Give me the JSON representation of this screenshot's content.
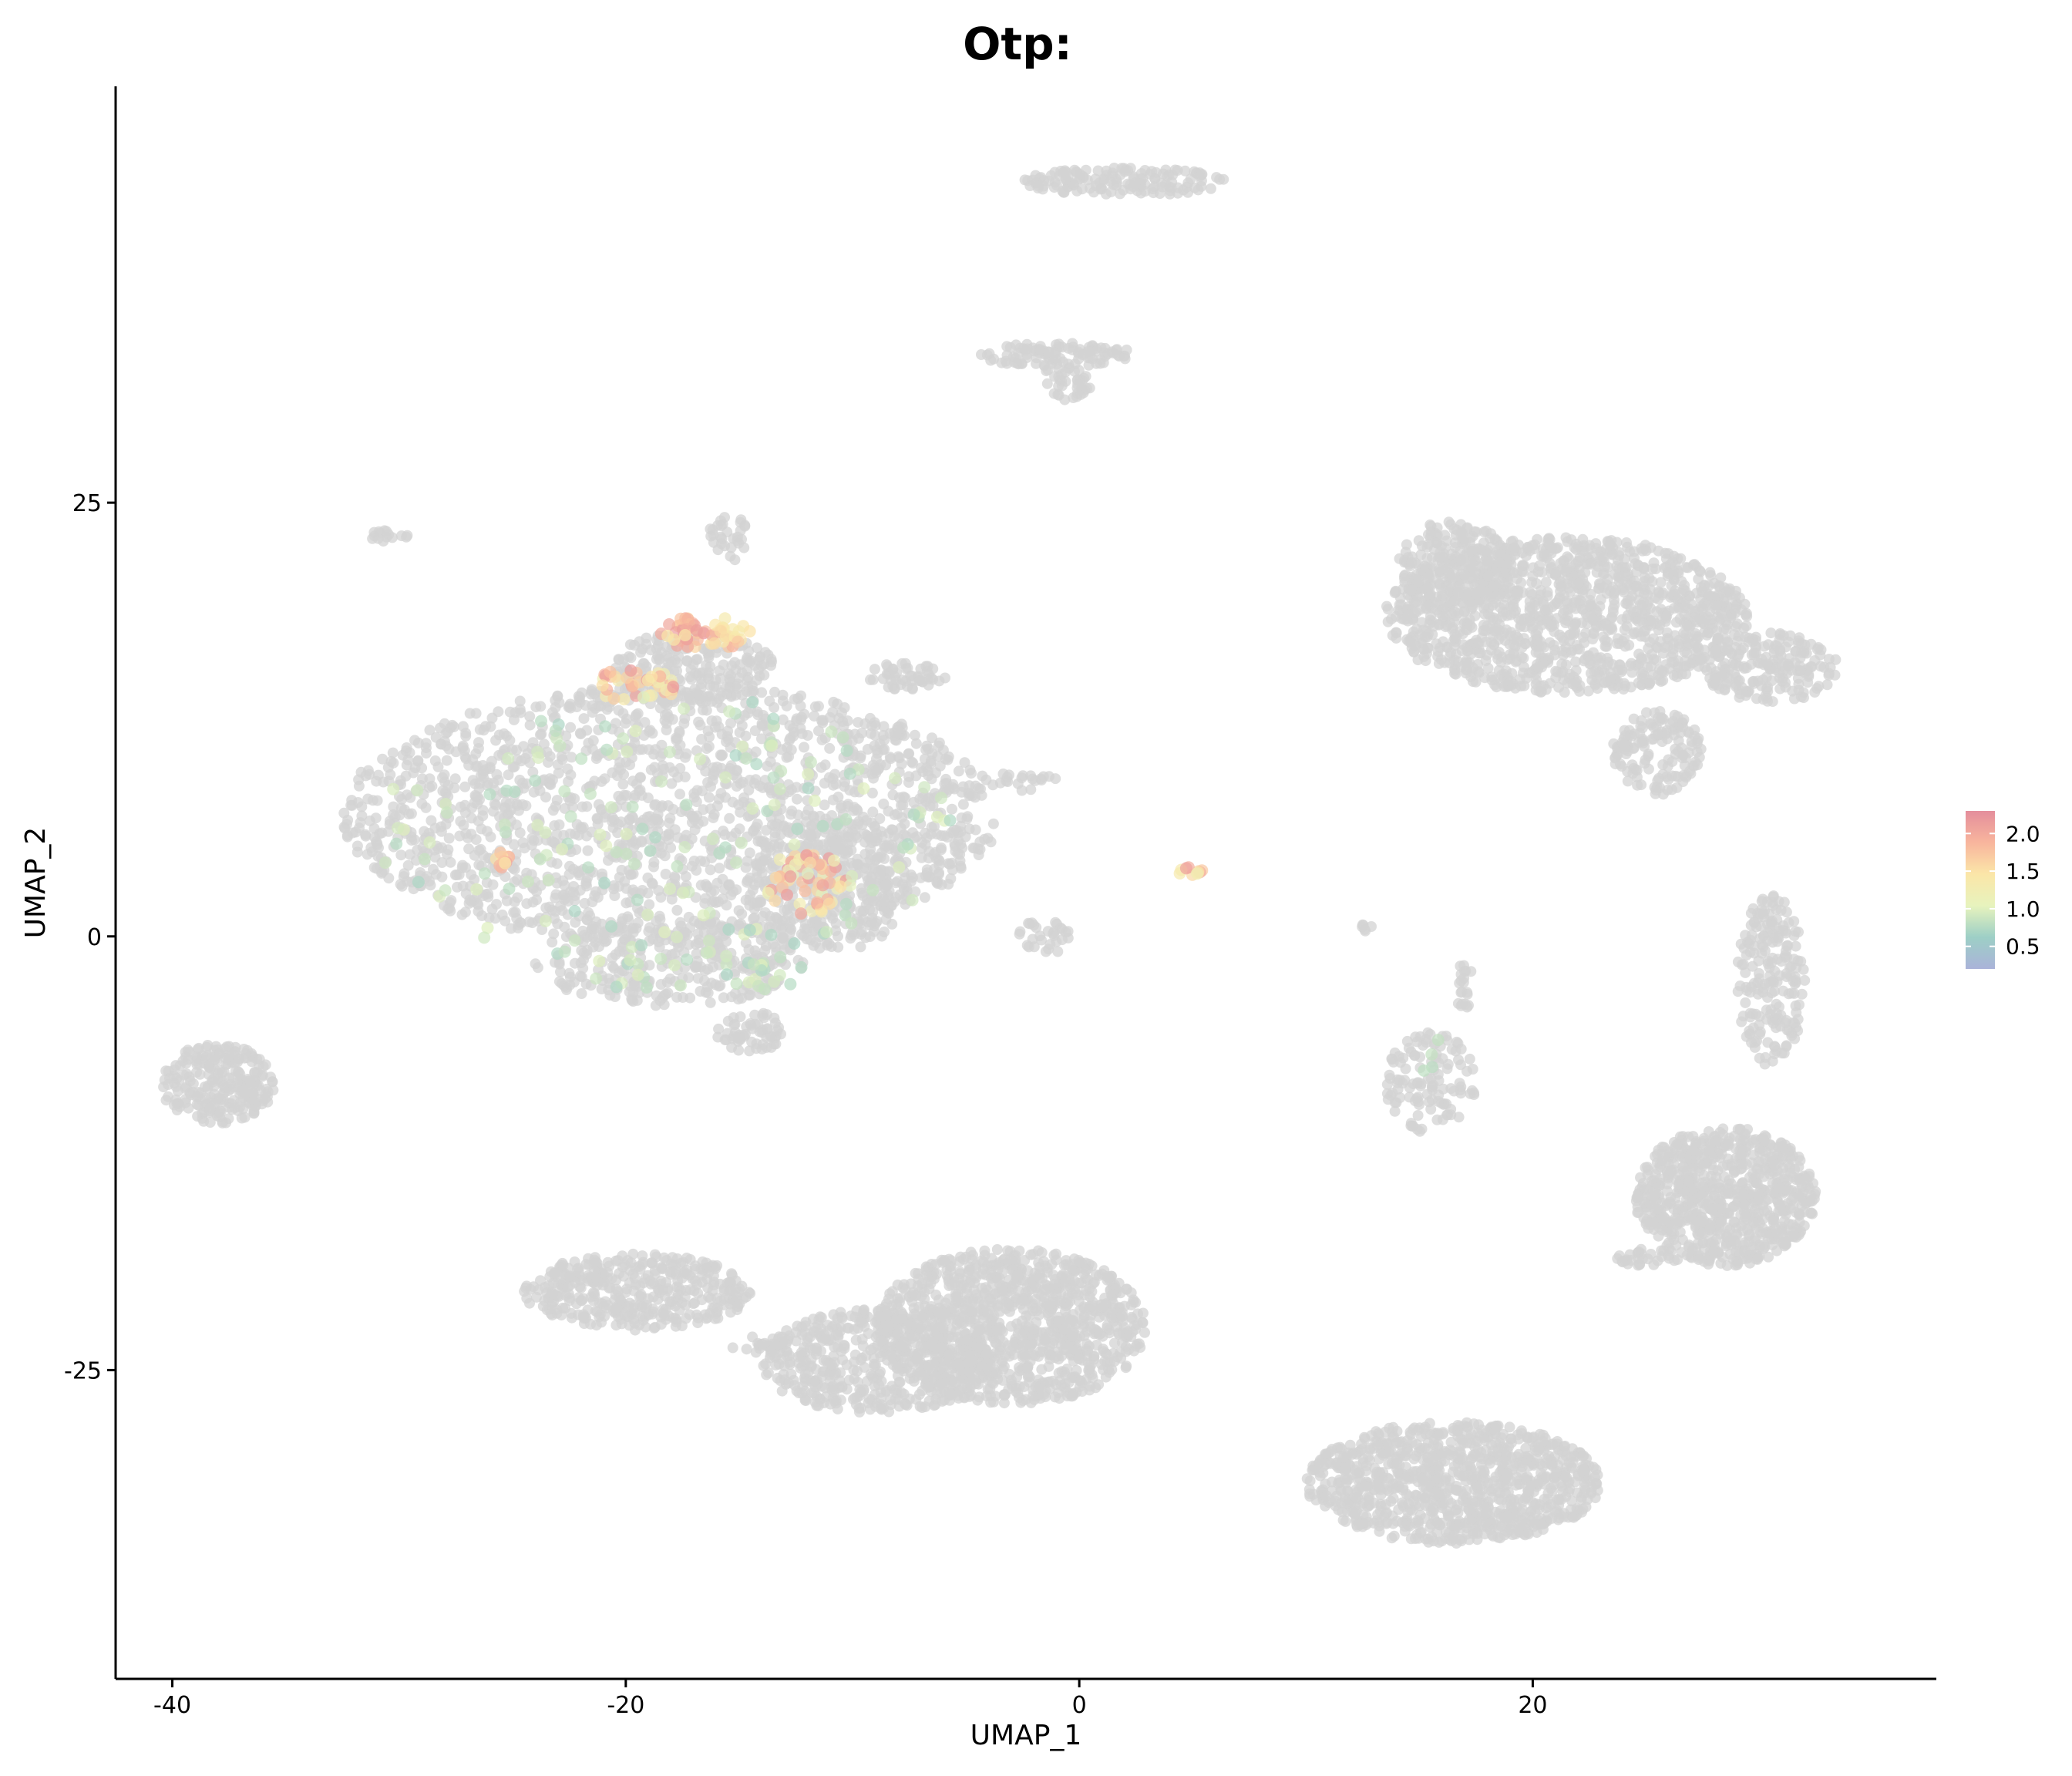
{
  "chart_data": {
    "type": "scatter",
    "title": "Otp:",
    "xlabel": "UMAP_1",
    "ylabel": "UMAP_2",
    "xlim": [
      -42.5,
      37.8
    ],
    "ylim": [
      -42.8,
      49.0
    ],
    "xticks": [
      -40,
      -20,
      0,
      20
    ],
    "yticks": [
      25,
      0,
      -25
    ],
    "grid": false,
    "background_color": "#d3d3d3",
    "colorbar": {
      "range": [
        0.2,
        2.3
      ],
      "ticks": [
        0.5,
        1.0,
        1.5,
        2.0
      ],
      "tick_labels": [
        "0.5",
        "1.0",
        "1.5",
        "2.0"
      ],
      "colors": [
        "#aab3d9",
        "#9dcfc6",
        "#e7f3bd",
        "#fbe6a8",
        "#f8b59d",
        "#e48e9c"
      ],
      "placement": "right"
    },
    "background_clusters": [
      {
        "cx": -18,
        "cy": 7,
        "rx": 14.5,
        "ry": 7.5,
        "n": 1800
      },
      {
        "cx": -18,
        "cy": -1.5,
        "rx": 6,
        "ry": 2.5,
        "n": 300
      },
      {
        "cx": -11,
        "cy": 3,
        "rx": 3.5,
        "ry": 4,
        "n": 300
      },
      {
        "cx": -17,
        "cy": 15.5,
        "rx": 3.5,
        "ry": 2.2,
        "n": 200
      },
      {
        "cx": -14.5,
        "cy": -5.5,
        "rx": 1.5,
        "ry": 1.2,
        "n": 60
      },
      {
        "cx": -7.5,
        "cy": 15,
        "rx": 1.8,
        "ry": 0.8,
        "n": 50
      },
      {
        "cx": -15.5,
        "cy": 23,
        "rx": 0.9,
        "ry": 1.4,
        "n": 30
      },
      {
        "cx": -30.5,
        "cy": 23,
        "rx": 0.9,
        "ry": 0.4,
        "n": 15
      },
      {
        "cx": -2.5,
        "cy": 9,
        "rx": 1.5,
        "ry": 0.6,
        "n": 20
      },
      {
        "cx": -1.5,
        "cy": 0,
        "rx": 1.2,
        "ry": 1,
        "n": 30
      },
      {
        "cx": -38,
        "cy": -8.5,
        "rx": 2.5,
        "ry": 2.3,
        "n": 250
      },
      {
        "cx": 2,
        "cy": 43.5,
        "rx": 4.5,
        "ry": 0.8,
        "n": 150
      },
      {
        "cx": -1,
        "cy": 33.5,
        "rx": 3.5,
        "ry": 0.7,
        "n": 100
      },
      {
        "cx": -0.5,
        "cy": 32,
        "rx": 1.2,
        "ry": 1.2,
        "n": 40
      },
      {
        "cx": 21.5,
        "cy": 18.5,
        "rx": 8,
        "ry": 4.5,
        "n": 1300
      },
      {
        "cx": 16.5,
        "cy": 21.5,
        "rx": 2.5,
        "ry": 2.5,
        "n": 200
      },
      {
        "cx": 25.5,
        "cy": 10.5,
        "rx": 2,
        "ry": 2.5,
        "n": 150
      },
      {
        "cx": 30.5,
        "cy": 15.5,
        "rx": 3,
        "ry": 2,
        "n": 200
      },
      {
        "cx": 30.5,
        "cy": -2.5,
        "rx": 1.5,
        "ry": 5,
        "n": 200
      },
      {
        "cx": 15.5,
        "cy": -8.5,
        "rx": 2,
        "ry": 3,
        "n": 120
      },
      {
        "cx": 17,
        "cy": -3,
        "rx": 0.4,
        "ry": 1.5,
        "n": 20
      },
      {
        "cx": 28.5,
        "cy": -15,
        "rx": 4,
        "ry": 4,
        "n": 800
      },
      {
        "cx": 25,
        "cy": -18.5,
        "rx": 1.5,
        "ry": 0.5,
        "n": 30
      },
      {
        "cx": 16.5,
        "cy": -31.5,
        "rx": 6.5,
        "ry": 3.5,
        "n": 1000
      },
      {
        "cx": -19.5,
        "cy": -20.5,
        "rx": 5,
        "ry": 2.2,
        "n": 400
      },
      {
        "cx": -3,
        "cy": -22.5,
        "rx": 6,
        "ry": 4.5,
        "n": 1100
      },
      {
        "cx": -9,
        "cy": -24.5,
        "rx": 5,
        "ry": 3,
        "n": 500
      },
      {
        "cx": -14,
        "cy": -23.5,
        "rx": 1.5,
        "ry": 0.5,
        "n": 20
      },
      {
        "cx": 12.5,
        "cy": 0.5,
        "rx": 0.4,
        "ry": 0.3,
        "n": 6
      }
    ],
    "expression_clusters": [
      {
        "cx": -16.5,
        "cy": 17.5,
        "rx": 2,
        "ry": 1,
        "n": 60,
        "min": 1.3,
        "max": 2.2
      },
      {
        "cx": -19.5,
        "cy": 14.5,
        "rx": 1.8,
        "ry": 1,
        "n": 40,
        "min": 1.2,
        "max": 2.2
      },
      {
        "cx": -12,
        "cy": 3,
        "rx": 2,
        "ry": 1.8,
        "n": 60,
        "min": 1.0,
        "max": 2.2
      },
      {
        "cx": -25.5,
        "cy": 4.5,
        "rx": 0.4,
        "ry": 0.6,
        "n": 10,
        "min": 1.3,
        "max": 2.1
      },
      {
        "cx": 5,
        "cy": 3.7,
        "rx": 0.6,
        "ry": 0.3,
        "n": 10,
        "min": 1.0,
        "max": 2.2
      },
      {
        "cx": -18,
        "cy": 6,
        "rx": 13,
        "ry": 8,
        "n": 160,
        "min": 0.7,
        "max": 1.0
      },
      {
        "cx": -17,
        "cy": -2,
        "rx": 5,
        "ry": 1.5,
        "n": 30,
        "min": 0.7,
        "max": 1.0
      },
      {
        "cx": 15.5,
        "cy": -7,
        "rx": 0.5,
        "ry": 1.5,
        "n": 4,
        "min": 0.7,
        "max": 0.9
      }
    ]
  }
}
